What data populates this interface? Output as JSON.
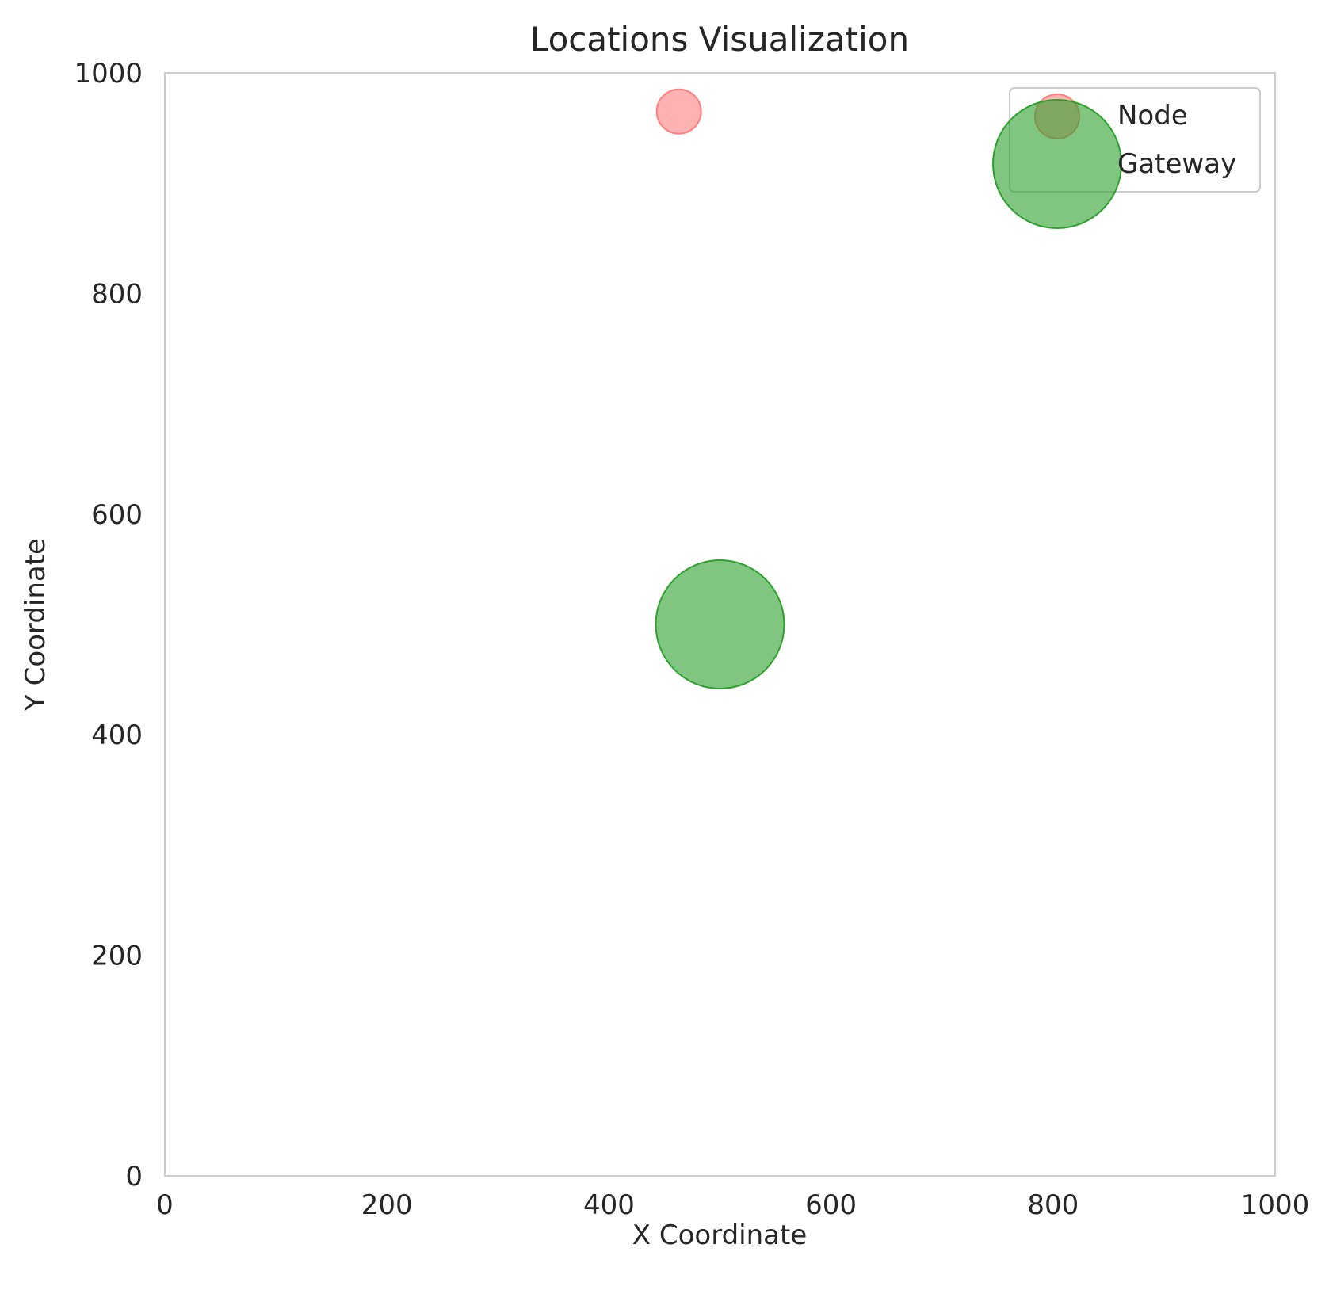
{
  "chart_data": {
    "type": "scatter",
    "title": "Locations Visualization",
    "xlabel": "X Coordinate",
    "ylabel": "Y Coordinate",
    "xlim": [
      0,
      1000
    ],
    "ylim": [
      0,
      1000
    ],
    "xticks": [
      0,
      200,
      400,
      600,
      800,
      1000
    ],
    "yticks": [
      0,
      200,
      400,
      600,
      800,
      1000
    ],
    "xtick_labels": [
      "0",
      "200",
      "400",
      "600",
      "800",
      "1000"
    ],
    "ytick_labels": [
      "0",
      "200",
      "400",
      "600",
      "800",
      "1000"
    ],
    "grid": false,
    "legend_position": "top-right",
    "series": [
      {
        "name": "Node",
        "color": "#ff7f7f",
        "marker_size": "small",
        "points": [
          {
            "x": 463,
            "y": 965
          }
        ]
      },
      {
        "name": "Gateway",
        "color": "#2ca02c",
        "marker_size": "large",
        "points": [
          {
            "x": 500,
            "y": 500
          }
        ]
      }
    ]
  }
}
